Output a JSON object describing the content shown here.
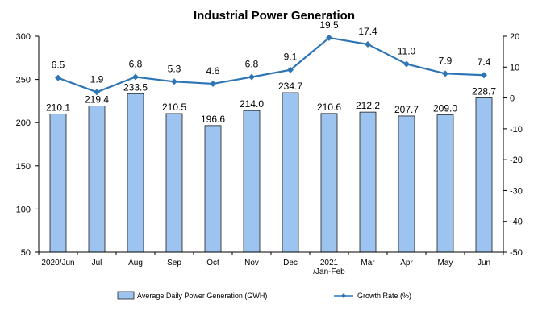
{
  "chart_data": {
    "type": "bar+line",
    "title": "Industrial Power Generation",
    "categories": [
      [
        "2020/Jun"
      ],
      [
        "Jul"
      ],
      [
        "Aug"
      ],
      [
        "Sep"
      ],
      [
        "Oct"
      ],
      [
        "Nov"
      ],
      [
        "Dec"
      ],
      [
        "2021",
        "/Jan-Feb"
      ],
      [
        "Mar"
      ],
      [
        "Apr"
      ],
      [
        "May"
      ],
      [
        "Jun"
      ]
    ],
    "series": [
      {
        "name": "Average Daily Power Generation (GWH)",
        "type": "bar",
        "axis": "left",
        "values": [
          210.1,
          219.4,
          233.5,
          210.5,
          196.6,
          214.0,
          234.7,
          210.6,
          212.2,
          207.7,
          209.0,
          228.7
        ],
        "labels": [
          "210.1",
          "219.4",
          "233.5",
          "210.5",
          "196.6",
          "214.0",
          "234.7",
          "210.6",
          "212.2",
          "207.7",
          "209.0",
          "228.7"
        ]
      },
      {
        "name": "Growth Rate (%)",
        "type": "line",
        "axis": "right",
        "values": [
          6.5,
          1.9,
          6.8,
          5.3,
          4.6,
          6.8,
          9.1,
          19.5,
          17.4,
          11.0,
          7.9,
          7.4
        ],
        "labels": [
          "6.5",
          "1.9",
          "6.8",
          "5.3",
          "4.6",
          "6.8",
          "9.1",
          "19.5",
          "17.4",
          "11.0",
          "7.9",
          "7.4"
        ]
      }
    ],
    "left_axis": {
      "min": 50,
      "max": 300,
      "ticks": [
        "50",
        "100",
        "150",
        "200",
        "250",
        "300"
      ]
    },
    "right_axis": {
      "min": -50,
      "max": 20,
      "ticks": [
        "-50",
        "-40",
        "-30",
        "-20",
        "-10",
        "0",
        "10",
        "20"
      ]
    },
    "grid": false,
    "legend_position": "bottom",
    "colors": {
      "bar_fill": "#9dc3f0",
      "bar_stroke": "#1f1f1f",
      "line": "#2e75b6",
      "axis": "#000000"
    }
  }
}
